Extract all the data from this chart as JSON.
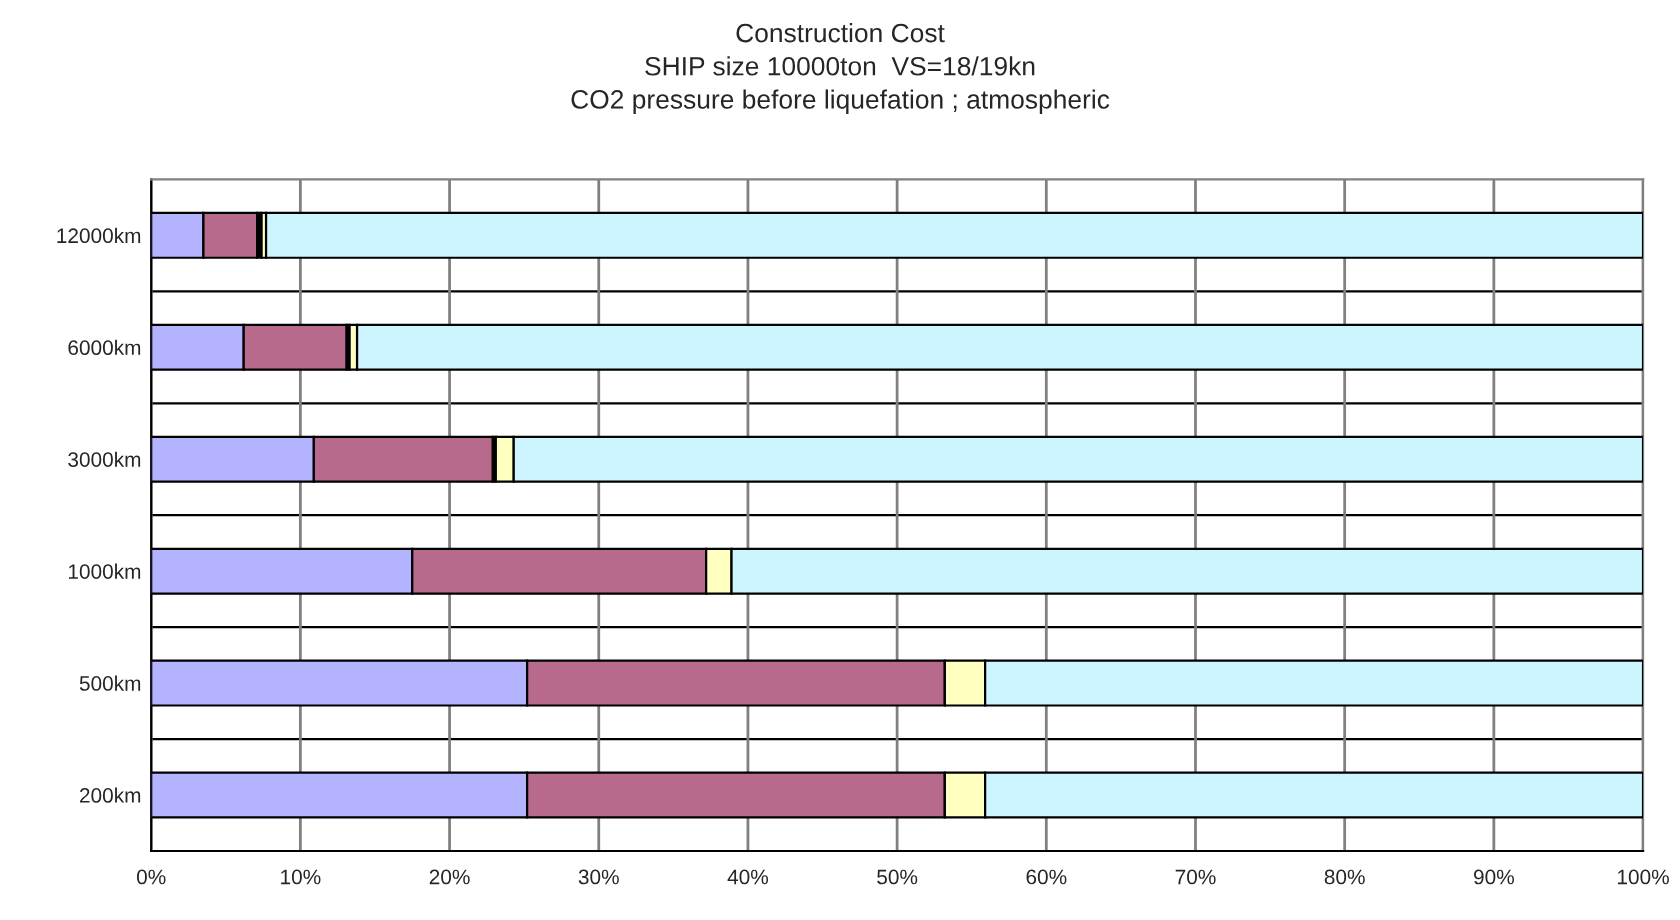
{
  "chart_data": {
    "type": "bar",
    "orientation": "horizontal",
    "stacked": true,
    "title": "Construction Cost\nSHIP size 10000ton  VS=18/19kn\nCO2 pressure before liquefation ; atmospheric",
    "categories": [
      "12000km",
      "6000km",
      "3000km",
      "1000km",
      "500km",
      "200km"
    ],
    "series": [
      {
        "color": "#b3b3ff",
        "values": [
          3.5,
          6.2,
          10.9,
          17.5,
          25.2,
          25.2
        ]
      },
      {
        "color": "#b86a8c",
        "values": [
          3.6,
          6.9,
          12.0,
          19.7,
          28.0,
          28.0
        ]
      },
      {
        "color": "#000000",
        "values": [
          0.3,
          0.2,
          0.2,
          0,
          0,
          0
        ]
      },
      {
        "color": "#ffffc0",
        "values": [
          0.3,
          0.5,
          1.2,
          1.7,
          2.7,
          2.7
        ]
      },
      {
        "color": "#ccf5ff",
        "values": [
          92.3,
          86.2,
          75.7,
          61.1,
          44.1,
          44.1
        ]
      }
    ],
    "xlim": [
      0,
      100
    ],
    "xticks": [
      {
        "value": 0,
        "label": "0%"
      },
      {
        "value": 10,
        "label": "10%"
      },
      {
        "value": 20,
        "label": "20%"
      },
      {
        "value": 30,
        "label": "30%"
      },
      {
        "value": 40,
        "label": "40%"
      },
      {
        "value": 50,
        "label": "50%"
      },
      {
        "value": 60,
        "label": "60%"
      },
      {
        "value": 70,
        "label": "70%"
      },
      {
        "value": 80,
        "label": "80%"
      },
      {
        "value": 90,
        "label": "90%"
      },
      {
        "value": 100,
        "label": "100%"
      }
    ],
    "grid": true,
    "legend": false
  }
}
